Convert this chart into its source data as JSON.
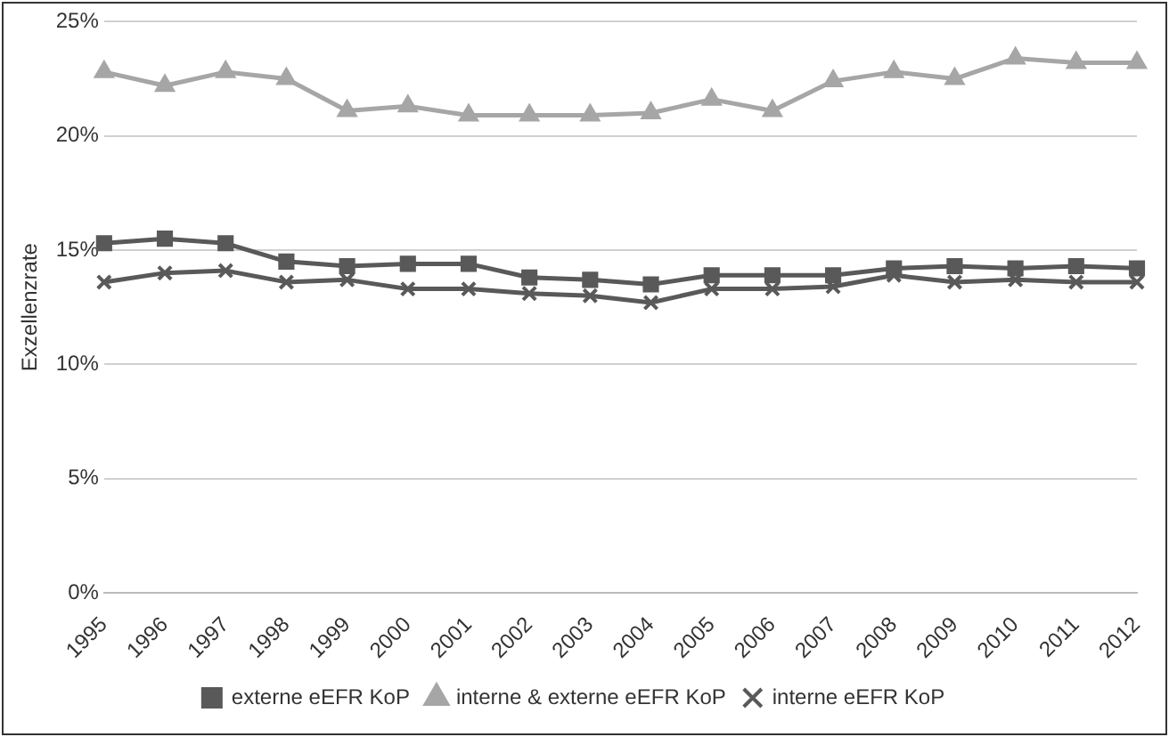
{
  "chart_data": {
    "type": "line",
    "ylabel": "Exzellenzrate",
    "categories": [
      "1995",
      "1996",
      "1997",
      "1998",
      "1999",
      "2000",
      "2001",
      "2002",
      "2003",
      "2004",
      "2005",
      "2006",
      "2007",
      "2008",
      "2009",
      "2010",
      "2011",
      "2012"
    ],
    "series": [
      {
        "name": "externe eEFR KoP",
        "color": "#595959",
        "marker": "square",
        "values": [
          15.3,
          15.5,
          15.3,
          14.5,
          14.3,
          14.4,
          14.4,
          13.8,
          13.7,
          13.5,
          13.9,
          13.9,
          13.9,
          14.2,
          14.3,
          14.2,
          14.3,
          14.2
        ]
      },
      {
        "name": "interne & externe eEFR KoP",
        "color": "#a6a6a6",
        "marker": "triangle",
        "values": [
          22.8,
          22.2,
          22.8,
          22.5,
          21.1,
          21.3,
          20.9,
          20.9,
          20.9,
          21.0,
          21.6,
          21.1,
          22.4,
          22.8,
          22.5,
          23.4,
          23.2,
          23.2
        ]
      },
      {
        "name": "interne eEFR KoP",
        "color": "#595959",
        "marker": "cross",
        "values": [
          13.6,
          14.0,
          14.1,
          13.6,
          13.7,
          13.3,
          13.3,
          13.1,
          13.0,
          12.7,
          13.3,
          13.3,
          13.4,
          13.9,
          13.6,
          13.7,
          13.6,
          13.6
        ]
      }
    ],
    "ylim": [
      0,
      25
    ],
    "yticks": [
      {
        "value": 0,
        "label": "0%"
      },
      {
        "value": 5,
        "label": "5%"
      },
      {
        "value": 10,
        "label": "10%"
      },
      {
        "value": 15,
        "label": "15%"
      },
      {
        "value": 20,
        "label": "20%"
      },
      {
        "value": 25,
        "label": "25%"
      }
    ],
    "grid": "y",
    "legend": "bottom",
    "line_style": "solid"
  }
}
